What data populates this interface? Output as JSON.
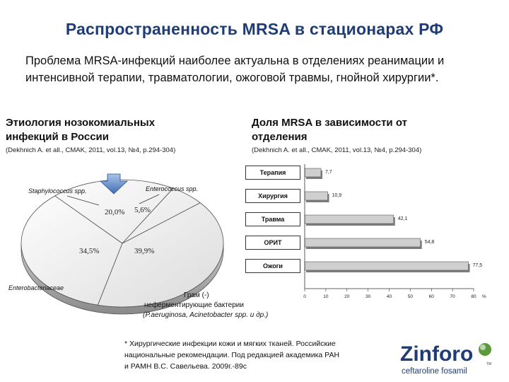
{
  "title": "Распространенность MRSA в стационарах РФ",
  "intro": "Проблема MRSA-инфекций наиболее актуальна в отделениях реанимации и интенсивной терапии, травматологии, ожоговой травмы, гнойной хирургии*.",
  "left": {
    "heading_line1": "Этиология нозокомиальных",
    "heading_line2": "инфекций в России",
    "citation": "(Dekhnich A. et all., CMAK, 2011, vol.13, №4, p.294-304)"
  },
  "right": {
    "heading_line1": "Доля MRSA в зависимости от",
    "heading_line2": "отделения",
    "citation": "(Dekhnich A. et all., CMAK, 2011, vol.13, №4, p.294-304)"
  },
  "chart_data": [
    {
      "type": "pie",
      "title": "Этиология нозокомиальных инфекций в России",
      "slices": [
        {
          "label": "Staphylococcus spp.",
          "value": 20.0,
          "display": "20,0%"
        },
        {
          "label": "Enterococcus spp.",
          "value": 5.6,
          "display": "5,6%"
        },
        {
          "label": "Грам (-) неферментирующие бактерии (P.aeruginosa, Acinetobacter spp. и др.)",
          "value": 39.9,
          "display": "39,9%"
        },
        {
          "label": "Enterobacteriaceae",
          "value": 34.5,
          "display": "34,5%"
        }
      ],
      "labels": {
        "staph": "Staphylococcus spp.",
        "entero": "Enterococcus spp.",
        "enterobact": "Enterobacteriaceae",
        "gram_line1": "Грам (-)",
        "gram_line2": "неферментирующие бактерии",
        "gram_line3": "(P.aeruginosa, Acinetobacter spp. и др.)"
      }
    },
    {
      "type": "bar",
      "orientation": "horizontal",
      "title": "Доля MRSA в зависимости от отделения",
      "categories": [
        "Терапия",
        "Хирургия",
        "Травма",
        "ОРИТ",
        "Ожоги"
      ],
      "values": [
        7.7,
        10.9,
        42.1,
        54.8,
        77.5
      ],
      "value_labels": [
        "7,7",
        "10,9",
        "42,1",
        "54,8",
        "77,5"
      ],
      "xlim": [
        0,
        80
      ],
      "xticks": [
        0,
        10,
        20,
        30,
        40,
        50,
        60,
        70,
        80
      ],
      "xlabel": "%"
    }
  ],
  "footnote": {
    "line1": "* Хирургические инфекции кожи и мягких тканей. Российские",
    "line2": "национальные рекомендации. Под редакцией академика РАН",
    "line3": "и РАМН  В.С. Савельева. 2009г.-89с"
  },
  "logo": {
    "brand": "Zinforo",
    "tm": "TM",
    "subtitle": "ceftaroline fosamil"
  }
}
